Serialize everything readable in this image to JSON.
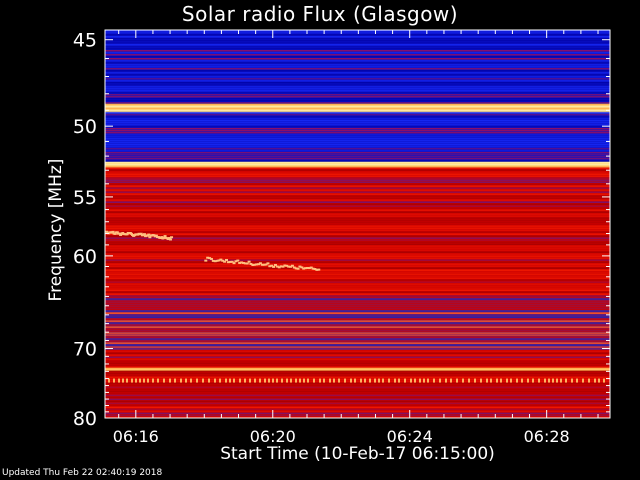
{
  "chart_data": {
    "type": "heatmap",
    "title": "Solar radio Flux (Glasgow)",
    "xlabel": "Start Time (10-Feb-17 06:15:00)",
    "ylabel": "Frequency [MHz]",
    "x_ticks": [
      "06:16",
      "06:20",
      "06:24",
      "06:28"
    ],
    "x_tick_minutes": [
      16,
      20,
      24,
      28
    ],
    "x_range_minutes": [
      15.1,
      29.85
    ],
    "y_ticks": [
      45,
      50,
      55,
      60,
      70,
      80
    ],
    "y_range_mhz": [
      44.5,
      80
    ],
    "y_scale": "reciprocal",
    "grid": false,
    "colors": {
      "background": "#000000",
      "low": "#0a10c8",
      "mid": "#cc0000",
      "high": "#ffd870",
      "frame": "#ffffff"
    },
    "bands": [
      {
        "from": 44.5,
        "to": 48.6,
        "level": "low"
      },
      {
        "from": 48.6,
        "to": 49.1,
        "level": "high"
      },
      {
        "from": 49.1,
        "to": 52.4,
        "level": "low"
      },
      {
        "from": 52.4,
        "to": 52.8,
        "level": "high"
      },
      {
        "from": 52.8,
        "to": 64.0,
        "level": "mid"
      },
      {
        "from": 64.0,
        "to": 70.0,
        "level": "mixed"
      },
      {
        "from": 70.0,
        "to": 72.5,
        "level": "mid"
      },
      {
        "from": 72.5,
        "to": 72.9,
        "level": "high"
      },
      {
        "from": 72.9,
        "to": 80.0,
        "level": "mid"
      }
    ],
    "features": [
      {
        "name": "burst-1",
        "t": [
          15.1,
          17.0
        ],
        "mhz": [
          57.8,
          58.3
        ]
      },
      {
        "name": "burst-2",
        "t": [
          18.0,
          21.3
        ],
        "mhz": [
          60.2,
          61.2
        ]
      }
    ]
  },
  "footer": {
    "updated": "Updated Thu Feb 22 02:40:19 2018"
  }
}
